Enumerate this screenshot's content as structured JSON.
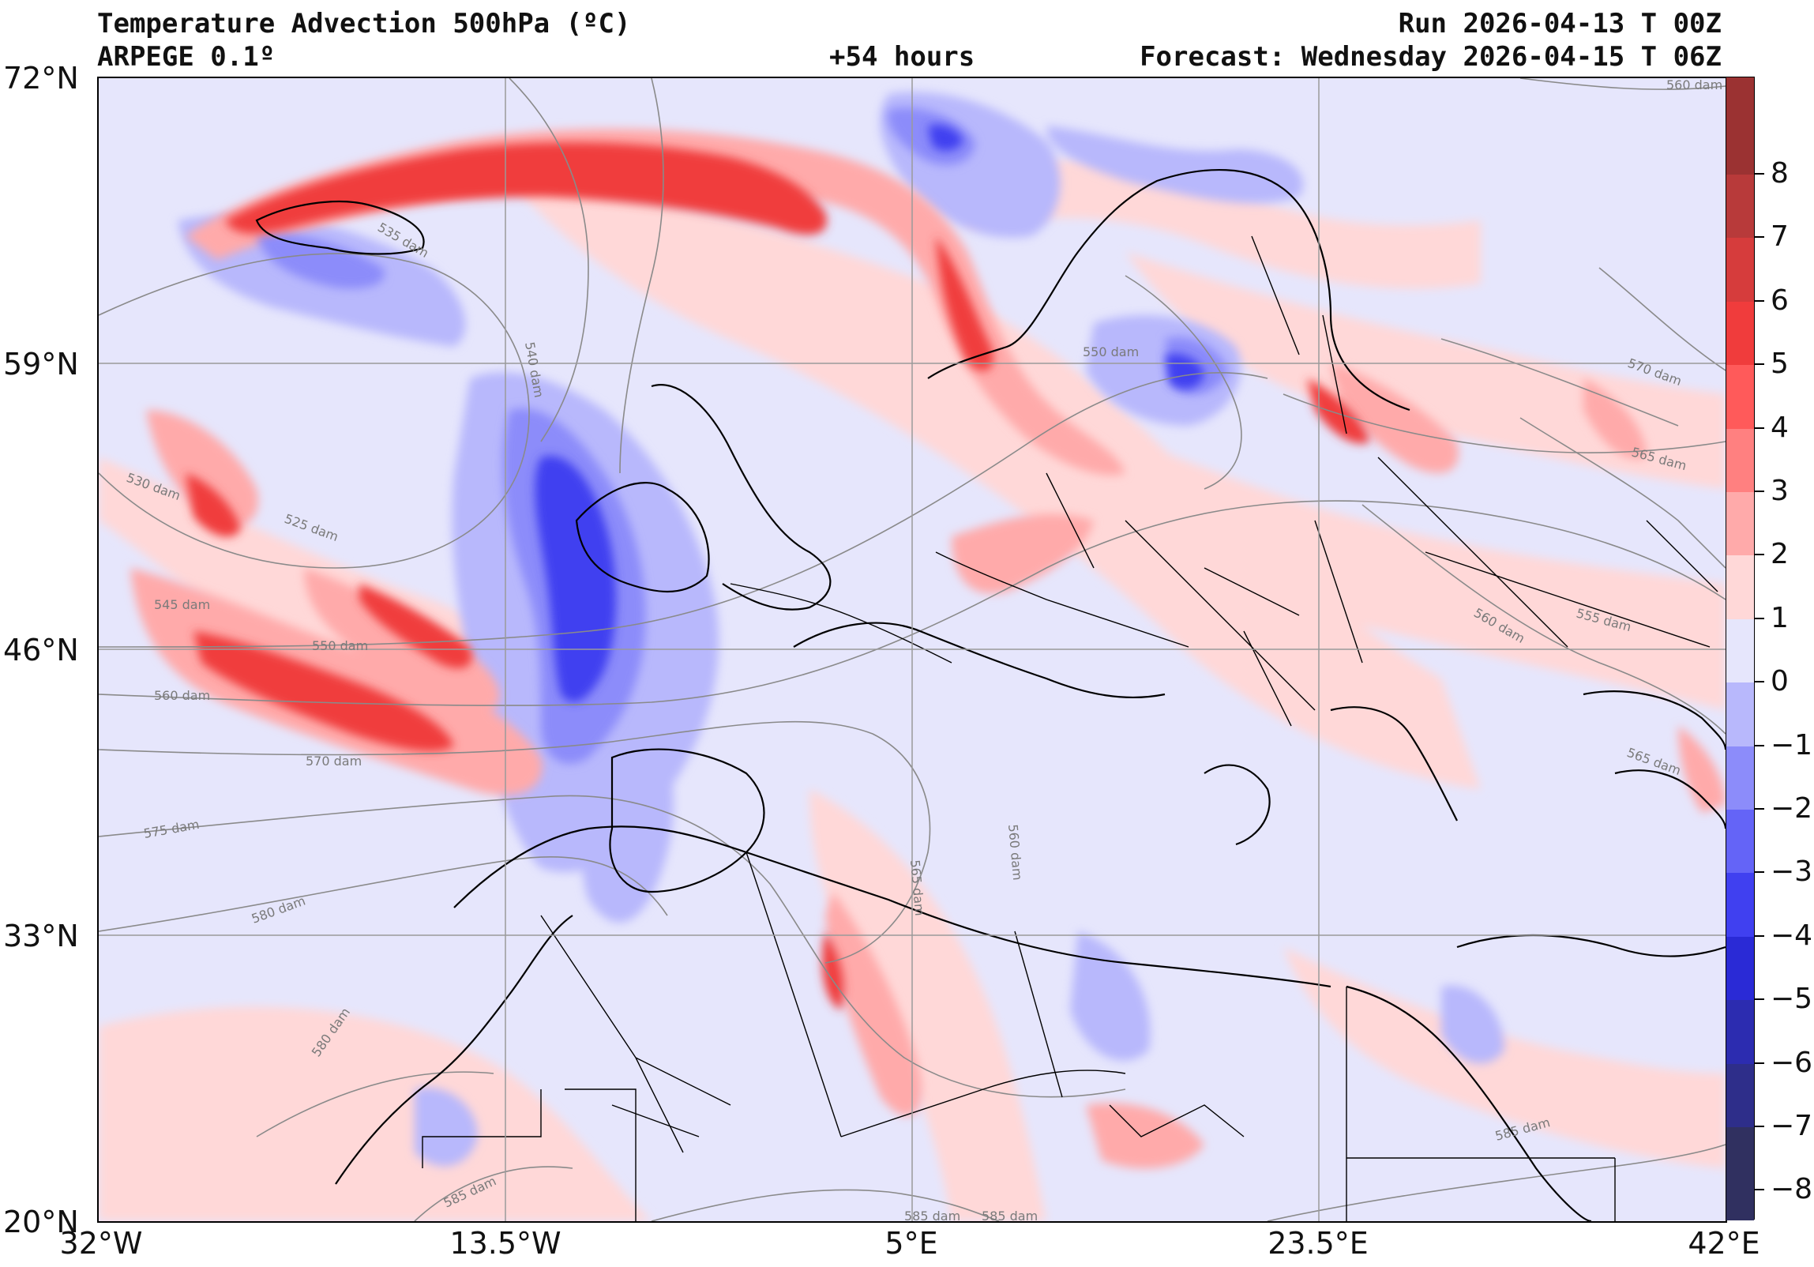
{
  "header": {
    "title": "Temperature Advection  500hPa (ºC)",
    "model": "ARPEGE 0.1º",
    "lead_time": "+54 hours",
    "run": "Run 2026-04-13 T 00Z",
    "forecast": "Forecast: Wednesday 2026-04-15 T 06Z"
  },
  "axes": {
    "lat_labels": [
      "72°N",
      "59°N",
      "46°N",
      "33°N",
      "20°N"
    ],
    "lon_labels": [
      "32°W",
      "13.5°W",
      "5°E",
      "23.5°E",
      "42°E"
    ]
  },
  "colorbar": {
    "labels": [
      "8",
      "7",
      "6",
      "5",
      "4",
      "3",
      "2",
      "1",
      "0",
      "−1",
      "−2",
      "−3",
      "−4",
      "−5",
      "−6",
      "−7",
      "−8"
    ],
    "colors": [
      "#9b3232",
      "#b83a3a",
      "#d63c3c",
      "#f03c3c",
      "#ff5a5a",
      "#ff8080",
      "#ffaaaa",
      "#ffd8d8",
      "#e6e6fc",
      "#b8b8fc",
      "#8c8cfa",
      "#6464f7",
      "#4040f0",
      "#2a2ad6",
      "#2c2cb0",
      "#2e2e8a",
      "#303060"
    ]
  },
  "contour_labels": [
    "535 dam",
    "540 dam",
    "550 dam",
    "530 dam",
    "525 dam",
    "545 dam",
    "550 dam",
    "560 dam",
    "570 dam",
    "575 dam",
    "580 dam",
    "580 dam",
    "565 dam",
    "560 dam",
    "560 dam",
    "555 dam",
    "565 dam",
    "565 dam",
    "570 dam",
    "585 dam",
    "585 dam",
    "585 dam",
    "585 dam",
    "560 dam"
  ]
}
